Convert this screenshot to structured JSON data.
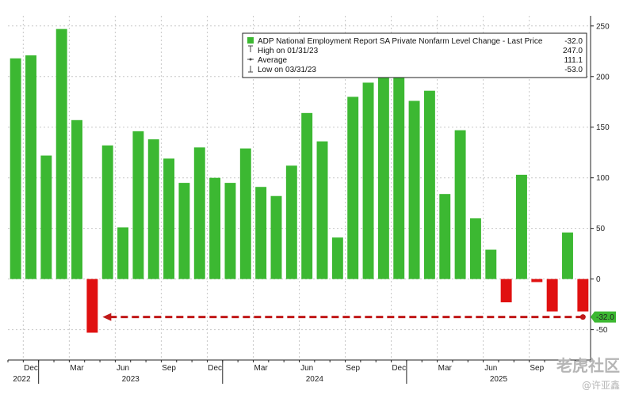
{
  "chart_data": {
    "type": "bar",
    "title": "ADP National Employment Report SA Private Nonfarm Level Change",
    "series": [
      {
        "name": "ADP National Employment Report SA Private Nonfarm Level Change",
        "values": [
          218,
          221,
          122,
          247,
          157,
          -53,
          132,
          51,
          146,
          138,
          119,
          95,
          130,
          100,
          95,
          129,
          91,
          82,
          112,
          164,
          136,
          41,
          180,
          194,
          211,
          203,
          176,
          186,
          84,
          147,
          60,
          29,
          -23,
          103,
          -3,
          -32,
          46,
          -32
        ]
      }
    ],
    "colors": {
      "positive": "#3cb832",
      "negative": "#e01010",
      "last_price_line": "#c01818"
    },
    "y_axis": {
      "range": [
        -80,
        260
      ],
      "ticks": [
        "250",
        "200",
        "150",
        "100",
        "50",
        "0",
        "-50"
      ],
      "position": "right"
    },
    "x_axis": {
      "months": [
        "Dec",
        "Mar",
        "Jun",
        "Sep",
        "Dec",
        "Mar",
        "Jun",
        "Sep",
        "Dec",
        "Mar",
        "Jun",
        "Sep"
      ],
      "years": [
        "2022",
        "2023",
        "2024",
        "2025"
      ]
    },
    "legend": {
      "placement": "top-right",
      "rows": [
        {
          "label": "ADP National Employment Report SA Private Nonfarm Level Change - Last Price",
          "value": "-32.0",
          "icon": "green-square-icon"
        },
        {
          "label": "High on 01/31/23",
          "value": "247.0",
          "icon": "high-marker-icon"
        },
        {
          "label": "Average",
          "value": "111.1",
          "icon": "average-marker-icon"
        },
        {
          "label": "Low on 03/31/23",
          "value": "-53.0",
          "icon": "low-marker-icon"
        }
      ]
    },
    "last_price_label": "-32.0",
    "last_price_value": -32,
    "arrow_from_index": 37,
    "arrow_to_index": 5
  },
  "watermark": {
    "brand": "老虎社区",
    "author": "@许亚鑫"
  }
}
